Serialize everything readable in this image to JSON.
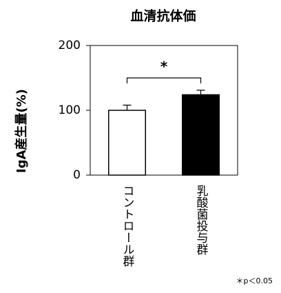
{
  "chart_data": {
    "type": "bar",
    "title": "血清抗体価",
    "y_label": "IgA産生量(%)",
    "categories": [
      "コントロール群",
      "乳酸菌投与群"
    ],
    "values": [
      100,
      124
    ],
    "errors": [
      8,
      7
    ],
    "colors": [
      "#ffffff",
      "#000000"
    ],
    "ylim": [
      0,
      200
    ],
    "yticks": [
      0,
      100,
      200
    ],
    "significance": "*",
    "note": "＊p＜0.05"
  }
}
